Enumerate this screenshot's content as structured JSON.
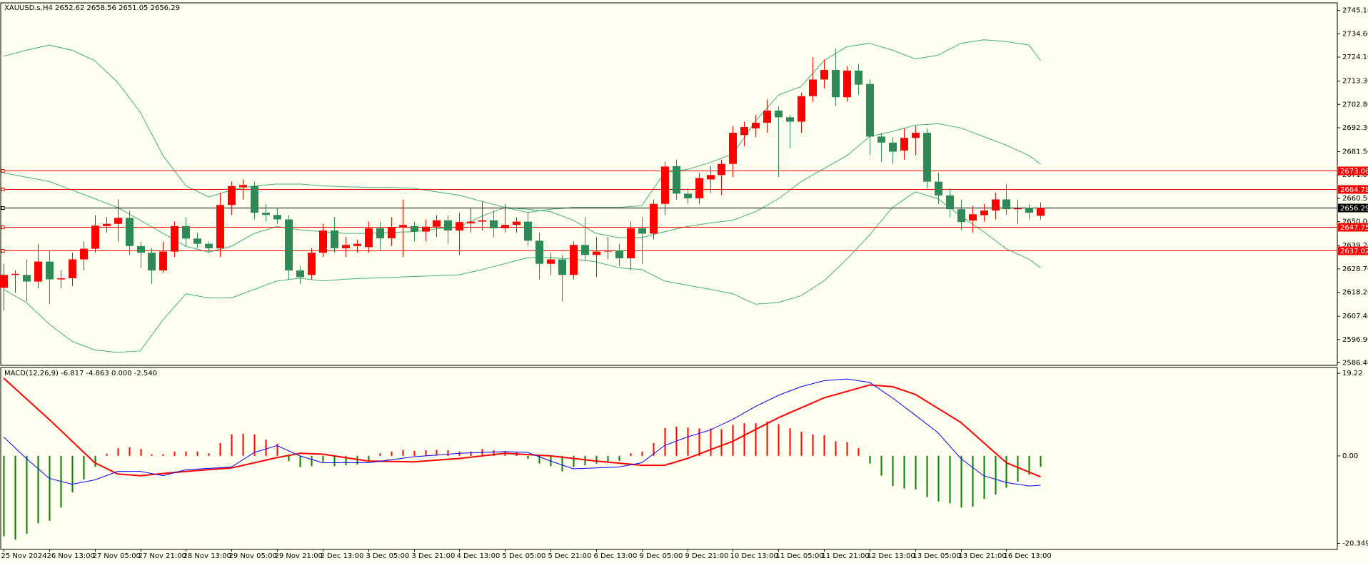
{
  "header": "XAUUSD.s,H4  2652.62 2658.56 2651.05 2656.29",
  "chart_data": [
    {
      "type": "candlestick",
      "categories": [
        "25 Nov 2024",
        null,
        null,
        null,
        "26 Nov 13:00",
        null,
        null,
        null,
        "27 Nov 05:00",
        null,
        null,
        null,
        "27 Nov 21:00",
        null,
        null,
        null,
        "28 Nov 13:00",
        null,
        null,
        null,
        "29 Nov 05:00",
        null,
        null,
        null,
        "29 Nov 21:00",
        null,
        null,
        null,
        "2 Dec 13:00",
        null,
        null,
        null,
        "3 Dec 05:00",
        null,
        null,
        null,
        "3 Dec 21:00",
        null,
        null,
        null,
        "4 Dec 13:00",
        null,
        null,
        null,
        "5 Dec 05:00",
        null,
        null,
        null,
        "5 Dec 21:00",
        null,
        null,
        null,
        "6 Dec 13:00",
        null,
        null,
        null,
        "9 Dec 05:00",
        null,
        null,
        null,
        "9 Dec 21:00",
        null,
        null,
        null,
        "10 Dec 13:00",
        null,
        null,
        null,
        "11 Dec 05:00",
        null,
        null,
        null,
        "11 Dec 21:00",
        null,
        null,
        null,
        "12 Dec 13:00",
        null,
        null,
        null,
        "13 Dec 05:00",
        null,
        null,
        null,
        "13 Dec 21:00",
        null,
        null,
        null,
        "16 Dec 13:00",
        null,
        null,
        null
      ],
      "open": [
        2620.2,
        2626,
        2626,
        2623,
        2632,
        2624,
        2624.5,
        2633,
        2637.8,
        2648,
        2649,
        2651.7,
        2639,
        2636,
        2628,
        2636.5,
        2648,
        2642.4,
        2640,
        2638,
        2657.5,
        2665.5,
        2666,
        2654,
        2653,
        2651,
        2628,
        2626,
        2636,
        2646,
        2638,
        2639,
        2638.5,
        2647,
        2642.5,
        2647.5,
        2648,
        2645.5,
        2647.7,
        2650.6,
        2646,
        2649.2,
        2650,
        2650.6,
        2647,
        2648.5,
        2650,
        2641.4,
        2631,
        2633,
        2626,
        2639.5,
        2635,
        2636.5,
        2637,
        2633.5,
        2647,
        2644.6,
        2658,
        2675,
        2662.6,
        2660.5,
        2669,
        2671,
        2676,
        2689,
        2692,
        2694.5,
        2700,
        2697,
        2695,
        2706.5,
        2714,
        2718.3,
        2706,
        2718,
        2712,
        2688.3,
        2685.6,
        2682,
        2687.7,
        2690,
        2668,
        2661.8,
        2655.6,
        2650.5,
        2652.9,
        2655,
        2660,
        2655.6,
        2656.3,
        2652.62
      ],
      "high": [
        2631,
        2628,
        2633,
        2640,
        2637,
        2628,
        2636,
        2641,
        2653,
        2652,
        2660,
        2655,
        2641,
        2638,
        2641,
        2650,
        2652,
        2645,
        2641,
        2663,
        2668,
        2669,
        2668,
        2658,
        2656,
        2653,
        2630,
        2638,
        2649,
        2652,
        2643,
        2642,
        2650,
        2650,
        2652,
        2660,
        2650,
        2651,
        2653,
        2653,
        2654,
        2656,
        2659,
        2655,
        2658,
        2652,
        2654,
        2645,
        2636,
        2635,
        2641,
        2652,
        2643,
        2643,
        2640,
        2650,
        2652,
        2660,
        2677,
        2678,
        2665,
        2672,
        2675,
        2678,
        2693,
        2695,
        2698,
        2705,
        2702,
        2698,
        2708,
        2724,
        2723,
        2728,
        2720,
        2721,
        2714,
        2690,
        2688,
        2692,
        2693,
        2692,
        2672,
        2665,
        2660,
        2657,
        2658,
        2663,
        2667,
        2660,
        2658,
        2658.56
      ],
      "low": [
        2610,
        2618,
        2614,
        2620,
        2613,
        2620,
        2621,
        2628,
        2636,
        2645,
        2641,
        2635,
        2629,
        2622,
        2627,
        2634,
        2639,
        2638,
        2636,
        2634,
        2653,
        2660,
        2651,
        2650,
        2649,
        2624,
        2622,
        2624,
        2634,
        2636,
        2634,
        2636,
        2636,
        2637,
        2639,
        2634,
        2641,
        2641,
        2643,
        2640,
        2635,
        2645,
        2646,
        2643,
        2645,
        2645,
        2639,
        2624,
        2626,
        2614,
        2624,
        2632,
        2625,
        2633,
        2630,
        2628,
        2631,
        2642,
        2653,
        2660,
        2658,
        2658,
        2663,
        2662,
        2670,
        2684,
        2688,
        2690,
        2670,
        2683,
        2690,
        2704,
        2710,
        2702,
        2704,
        2707,
        2680,
        2677,
        2676,
        2678,
        2680,
        2665,
        2658,
        2652,
        2646,
        2645,
        2650,
        2651,
        2653,
        2649,
        2651,
        2651.05
      ],
      "close": [
        2626.0,
        2626.5,
        2623,
        2632,
        2624,
        2624.5,
        2633,
        2637.8,
        2648.2,
        2649,
        2651.7,
        2639,
        2636,
        2628,
        2636.5,
        2648,
        2642.4,
        2640,
        2638,
        2657.5,
        2666,
        2666.5,
        2654,
        2653,
        2651,
        2628,
        2625,
        2636,
        2646,
        2638,
        2639.5,
        2640,
        2647,
        2642.5,
        2647.5,
        2648.5,
        2645.5,
        2647.7,
        2650.6,
        2646,
        2649.8,
        2650,
        2650.6,
        2647,
        2648.5,
        2650,
        2641.4,
        2631,
        2633,
        2626,
        2639.5,
        2635,
        2636.5,
        2637,
        2633.5,
        2647,
        2644.6,
        2658,
        2674.8,
        2662.6,
        2660.5,
        2669.6,
        2671,
        2676,
        2690,
        2692.6,
        2694.5,
        2700,
        2697,
        2695,
        2706.5,
        2714,
        2718.3,
        2706,
        2718,
        2711.7,
        2688.3,
        2685.6,
        2681.5,
        2687.7,
        2690,
        2668,
        2661.8,
        2655.6,
        2649.8,
        2653.3,
        2655,
        2660,
        2655.6,
        2656,
        2654,
        2656.29
      ],
      "up_color": "#ff0000",
      "down_color": "#2e8b57",
      "bands": [
        {
          "color": "#3cb371",
          "x": [
            0,
            2,
            4,
            6,
            8,
            10,
            12,
            14,
            16,
            18,
            20,
            22,
            24,
            26,
            28,
            30,
            32,
            34,
            36,
            38,
            40,
            42,
            44,
            46,
            48,
            50,
            52,
            54,
            56,
            58,
            60,
            62,
            64,
            66,
            68,
            70,
            72,
            74,
            76,
            78,
            80,
            82,
            84,
            86,
            88,
            90,
            91
          ],
          "values": [
            2724.5,
            2727.2,
            2729.5,
            2727.2,
            2722.5,
            2712.8,
            2699.2,
            2679.7,
            2666.1,
            2661.1,
            2664.2,
            2666.1,
            2666.9,
            2666.9,
            2666.1,
            2665.7,
            2665.4,
            2665.4,
            2665.0,
            2663.4,
            2661.9,
            2659.1,
            2656.4,
            2654.1,
            2655.6,
            2656.4,
            2656.4,
            2656.4,
            2657.2,
            2672.0,
            2673.5,
            2676.6,
            2680.5,
            2695.3,
            2707.0,
            2710.9,
            2722.5,
            2728.8,
            2730.3,
            2727.2,
            2723.3,
            2724.9,
            2730.3,
            2731.9,
            2731.1,
            2729.5,
            2722.5
          ]
        },
        {
          "color": "#3cb371",
          "x": [
            0,
            2,
            4,
            6,
            8,
            10,
            12,
            14,
            16,
            18,
            20,
            22,
            24,
            26,
            28,
            30,
            32,
            34,
            36,
            38,
            40,
            42,
            44,
            46,
            48,
            50,
            52,
            54,
            56,
            58,
            60,
            62,
            64,
            66,
            68,
            70,
            72,
            74,
            76,
            78,
            80,
            82,
            84,
            86,
            88,
            90,
            91
          ],
          "values": [
            2672.0,
            2670.0,
            2668.1,
            2664.2,
            2660.3,
            2656.4,
            2650.6,
            2644.7,
            2638.9,
            2636.2,
            2638.9,
            2644.7,
            2647.8,
            2646.3,
            2645.5,
            2644.7,
            2644.7,
            2645.1,
            2645.5,
            2646.7,
            2647.8,
            2652.5,
            2656.4,
            2655.6,
            2654.5,
            2650.6,
            2644.7,
            2642.8,
            2642.8,
            2645.5,
            2647.8,
            2649.4,
            2650.6,
            2654.5,
            2660.3,
            2668.1,
            2673.9,
            2679.7,
            2688.3,
            2690.6,
            2693.4,
            2694.1,
            2692.2,
            2688.3,
            2684.4,
            2679.7,
            2675.9
          ]
        },
        {
          "color": "#3cb371",
          "x": [
            0,
            2,
            4,
            6,
            8,
            10,
            12,
            14,
            16,
            18,
            20,
            22,
            24,
            26,
            28,
            30,
            32,
            34,
            36,
            38,
            40,
            42,
            44,
            46,
            48,
            50,
            52,
            54,
            56,
            58,
            60,
            62,
            64,
            66,
            68,
            70,
            72,
            74,
            76,
            78,
            80,
            82,
            84,
            86,
            88,
            90,
            91
          ],
          "values": [
            2619.5,
            2613.6,
            2603.9,
            2596.1,
            2592.2,
            2591.1,
            2591.8,
            2605.8,
            2617.5,
            2615.6,
            2615.6,
            2619.5,
            2623.3,
            2624.5,
            2623.3,
            2624.1,
            2624.5,
            2624.9,
            2625.3,
            2625.7,
            2626.1,
            2628.4,
            2631.1,
            2633.8,
            2633.8,
            2633.1,
            2631.9,
            2629.2,
            2628.4,
            2623.3,
            2621.4,
            2619.5,
            2617.5,
            2612.8,
            2613.6,
            2616.7,
            2623.3,
            2633.1,
            2644.0,
            2656.4,
            2663.4,
            2660.3,
            2652.5,
            2645.5,
            2637.7,
            2633.1,
            2629.2
          ]
        }
      ],
      "price_lines": [
        {
          "value": 2673.06,
          "color": "#ff0000"
        },
        {
          "value": 2664.78,
          "color": "#ff0000"
        },
        {
          "value": 2656.29,
          "color": "#000000"
        },
        {
          "value": 2647.75,
          "color": "#ff0000"
        },
        {
          "value": 2637.02,
          "color": "#ff0000"
        }
      ],
      "ylim": [
        2585.6,
        2748.2
      ],
      "yticks": [
        {
          "value": 2745.1,
          "label": "2745.10"
        },
        {
          "value": 2734.6,
          "label": "2734.60"
        },
        {
          "value": 2724.1,
          "label": "2724.10"
        },
        {
          "value": 2713.3,
          "label": "2713.30"
        },
        {
          "value": 2702.8,
          "label": "2702.80"
        },
        {
          "value": 2692.3,
          "label": "2692.30"
        },
        {
          "value": 2681.5,
          "label": "2681.50"
        },
        {
          "value": 2671,
          "label": "2671.00"
        },
        {
          "value": 2660.5,
          "label": "2660.50"
        },
        {
          "value": 2650,
          "label": "2650.00"
        },
        {
          "value": 2639.2,
          "label": "2639.20"
        },
        {
          "value": 2628.7,
          "label": "2628.70"
        },
        {
          "value": 2618.2,
          "label": "2618.20"
        },
        {
          "value": 2607.4,
          "label": "2607.40"
        },
        {
          "value": 2596.9,
          "label": "2596.90"
        },
        {
          "value": 2586.4,
          "label": "2586.40"
        }
      ]
    },
    {
      "type": "macd",
      "title": "MACD(12,26,9) -6.817 -4.863 0.000 -2.540",
      "histogram": [
        -18.7,
        -19.5,
        -18.1,
        -15.7,
        -15.1,
        -12.0,
        -8.5,
        -5.5,
        -2.5,
        0.5,
        1.8,
        2.0,
        1.6,
        0.4,
        0.4,
        1.0,
        1.0,
        1.0,
        0.6,
        3.0,
        5.0,
        5.2,
        5.0,
        3.8,
        2.8,
        -1.2,
        -2.6,
        -2.4,
        -1.4,
        -2.4,
        -2.2,
        -2.0,
        -1.4,
        0.6,
        1.0,
        1.4,
        1.2,
        1.3,
        1.4,
        1.3,
        1.0,
        1.0,
        1.6,
        1.3,
        1.1,
        0.9,
        -0.7,
        -1.8,
        -2.4,
        -3.6,
        -2.6,
        -2.2,
        -1.8,
        -1.4,
        -1.2,
        0.6,
        1.0,
        3.0,
        6.5,
        6.8,
        6.6,
        6.4,
        6.4,
        6.2,
        7.2,
        7.6,
        7.6,
        8.0,
        7.4,
        6.4,
        5.6,
        5.0,
        4.8,
        3.4,
        3.2,
        1.8,
        -1.8,
        -4.6,
        -7.0,
        -7.6,
        -7.8,
        -9.6,
        -10.6,
        -11.0,
        -12.0,
        -11.8,
        -10.0,
        -9.0,
        -7.4,
        -6.0,
        -4.4,
        -2.54
      ],
      "up_color": "#ff0000",
      "down_color": "#008000",
      "series": [
        {
          "color": "#ff0000",
          "x": [
            0,
            4,
            8,
            10,
            12,
            16,
            20,
            24,
            26,
            28,
            32,
            36,
            40,
            44,
            48,
            52,
            56,
            58,
            60,
            64,
            68,
            72,
            76,
            78,
            80,
            84,
            88,
            91
          ],
          "values": [
            18.1,
            8.5,
            -1.6,
            -4.2,
            -4.6,
            -3.6,
            -2.8,
            -0.4,
            0.6,
            0.4,
            -1.2,
            -1.4,
            -0.6,
            0.6,
            0.0,
            -1.2,
            -2.2,
            -2.2,
            -0.6,
            3.4,
            8.9,
            13.5,
            16.5,
            16.1,
            14.3,
            7.8,
            -1.6,
            -4.863
          ]
        },
        {
          "color": "#0000ff",
          "x": [
            0,
            2,
            4,
            6,
            8,
            10,
            12,
            14,
            16,
            20,
            22,
            24,
            26,
            28,
            32,
            36,
            40,
            44,
            46,
            48,
            50,
            52,
            54,
            56,
            58,
            60,
            62,
            64,
            66,
            68,
            70,
            72,
            74,
            76,
            78,
            80,
            82,
            84,
            86,
            88,
            90,
            91
          ],
          "values": [
            4.4,
            -0.6,
            -5.2,
            -6.6,
            -5.6,
            -3.6,
            -3.6,
            -4.6,
            -3.2,
            -2.6,
            0.8,
            2.4,
            0.0,
            -1.6,
            -1.6,
            -0.2,
            0.6,
            1.0,
            0.8,
            -1.2,
            -3.0,
            -2.8,
            -2.6,
            -1.6,
            2.4,
            4.4,
            6.0,
            8.5,
            11.5,
            14.1,
            16.1,
            17.5,
            17.9,
            17.1,
            13.5,
            9.5,
            5.4,
            -0.6,
            -4.6,
            -6.2,
            -7.0,
            -6.817
          ]
        }
      ],
      "ylim": [
        -21.6,
        20.4
      ],
      "yticks": [
        19.22,
        {
          "value": 0,
          "label": "0.00"
        },
        -20.349
      ]
    }
  ]
}
